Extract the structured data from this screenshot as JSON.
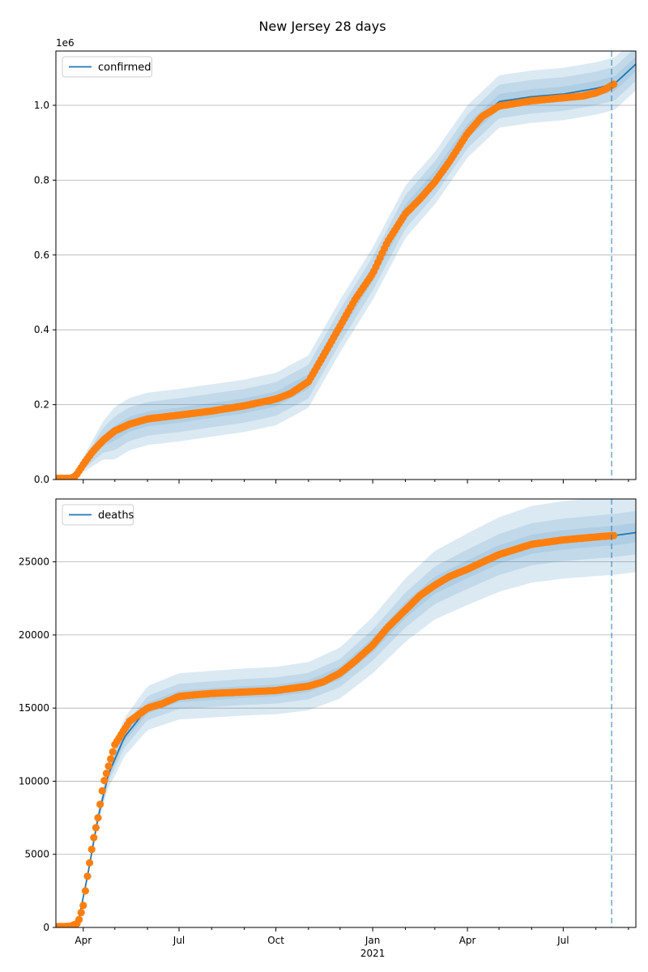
{
  "figure": {
    "title": "New Jersey 28 days"
  },
  "colors": {
    "model": "#1f77b4",
    "observed": "#ff7f0e",
    "band": "#1f77b4",
    "grid": "#b0b0b0"
  },
  "chart_data": [
    {
      "type": "line",
      "panel": "top",
      "legend": {
        "label": "confirmed",
        "placement": "top-left"
      },
      "y_offset_label": "1e6",
      "ylim": [
        0,
        1.145
      ],
      "yticks": [
        0.0,
        0.2,
        0.4,
        0.6,
        0.8,
        1.0
      ],
      "ytick_labels": [
        "0.0",
        "0.2",
        "0.4",
        "0.6",
        "0.8",
        "1.0"
      ],
      "xlim": [
        "2020-03-06",
        "2021-09-08"
      ],
      "grid": "horizontal",
      "forecast_start": "2021-08-16",
      "observed": {
        "x": [
          "2020-03-06",
          "2020-03-20",
          "2020-03-25",
          "2020-04-01",
          "2020-04-10",
          "2020-04-20",
          "2020-05-01",
          "2020-05-15",
          "2020-06-01",
          "2020-07-01",
          "2020-08-01",
          "2020-09-01",
          "2020-10-01",
          "2020-10-15",
          "2020-11-01",
          "2020-11-15",
          "2020-12-01",
          "2020-12-15",
          "2021-01-01",
          "2021-01-15",
          "2021-02-01",
          "2021-02-15",
          "2021-03-01",
          "2021-03-15",
          "2021-04-01",
          "2021-04-15",
          "2021-05-01",
          "2021-06-01",
          "2021-07-01",
          "2021-07-20",
          "2021-08-01",
          "2021-08-10",
          "2021-08-19"
        ],
        "y": [
          0.003,
          0.003,
          0.01,
          0.04,
          0.075,
          0.105,
          0.13,
          0.148,
          0.162,
          0.172,
          0.183,
          0.197,
          0.215,
          0.23,
          0.262,
          0.33,
          0.41,
          0.48,
          0.55,
          0.635,
          0.71,
          0.75,
          0.795,
          0.85,
          0.925,
          0.97,
          0.998,
          1.012,
          1.02,
          1.025,
          1.033,
          1.043,
          1.058
        ]
      },
      "model": {
        "x": [
          "2020-03-06",
          "2020-03-20",
          "2020-04-01",
          "2020-04-20",
          "2020-05-15",
          "2020-06-01",
          "2020-07-01",
          "2020-09-01",
          "2020-10-01",
          "2020-11-01",
          "2020-12-01",
          "2021-01-01",
          "2021-02-01",
          "2021-03-01",
          "2021-04-01",
          "2021-05-01",
          "2021-06-01",
          "2021-07-01",
          "2021-08-01",
          "2021-08-19",
          "2021-09-08"
        ],
        "y": [
          0.003,
          0.003,
          0.04,
          0.105,
          0.148,
          0.162,
          0.172,
          0.197,
          0.215,
          0.262,
          0.41,
          0.55,
          0.715,
          0.805,
          0.93,
          1.01,
          1.023,
          1.03,
          1.045,
          1.058,
          1.11
        ]
      },
      "band_half_widths": [
        0.02,
        0.045,
        0.07
      ]
    },
    {
      "type": "line",
      "panel": "bottom",
      "legend": {
        "label": "deaths",
        "placement": "top-left"
      },
      "ylim": [
        0,
        29300
      ],
      "yticks": [
        0,
        5000,
        10000,
        15000,
        20000,
        25000
      ],
      "ytick_labels": [
        "0",
        "5000",
        "10000",
        "15000",
        "20000",
        "25000"
      ],
      "xlim": [
        "2020-03-06",
        "2021-09-08"
      ],
      "xtick_labels": [
        {
          "date": "2020-04-01",
          "label": "Apr"
        },
        {
          "date": "2020-07-01",
          "label": "Jul"
        },
        {
          "date": "2020-10-01",
          "label": "Oct"
        },
        {
          "date": "2021-01-01",
          "label": "Jan",
          "sub": "2021"
        },
        {
          "date": "2021-04-01",
          "label": "Apr"
        },
        {
          "date": "2021-07-01",
          "label": "Jul"
        }
      ],
      "grid": "horizontal",
      "forecast_start": "2021-08-16",
      "observed": {
        "x": [
          "2020-03-06",
          "2020-03-20",
          "2020-03-27",
          "2020-04-01",
          "2020-04-05",
          "2020-04-10",
          "2020-04-15",
          "2020-04-20",
          "2020-05-01",
          "2020-05-15",
          "2020-06-01",
          "2020-06-15",
          "2020-07-01",
          "2020-07-15",
          "2020-08-01",
          "2020-09-01",
          "2020-10-01",
          "2020-11-01",
          "2020-11-15",
          "2020-12-01",
          "2020-12-15",
          "2021-01-01",
          "2021-01-15",
          "2021-02-01",
          "2021-02-15",
          "2021-03-01",
          "2021-03-15",
          "2021-04-01",
          "2021-05-01",
          "2021-06-01",
          "2021-07-01",
          "2021-08-01",
          "2021-08-19"
        ],
        "y": [
          50,
          80,
          300,
          1500,
          3500,
          5800,
          7500,
          9800,
          12500,
          14100,
          15000,
          15300,
          15800,
          15900,
          16000,
          16100,
          16200,
          16500,
          16800,
          17400,
          18200,
          19300,
          20500,
          21700,
          22700,
          23400,
          24000,
          24500,
          25500,
          26200,
          26500,
          26700,
          26800
        ]
      },
      "model": {
        "x": [
          "2020-03-06",
          "2020-03-20",
          "2020-03-27",
          "2020-04-05",
          "2020-04-15",
          "2020-04-25",
          "2020-05-10",
          "2020-06-01",
          "2020-07-01",
          "2020-09-01",
          "2020-10-01",
          "2020-11-01",
          "2020-12-01",
          "2021-01-01",
          "2021-02-01",
          "2021-03-01",
          "2021-04-01",
          "2021-05-01",
          "2021-06-01",
          "2021-07-01",
          "2021-08-01",
          "2021-08-19",
          "2021-09-08"
        ],
        "y": [
          50,
          80,
          300,
          3500,
          7500,
          10500,
          13000,
          15000,
          15800,
          16100,
          16200,
          16500,
          17400,
          19300,
          21700,
          23400,
          24500,
          25500,
          26200,
          26500,
          26700,
          26800,
          27000
        ]
      },
      "band_half_frac": [
        0.025,
        0.055,
        0.1
      ]
    }
  ]
}
